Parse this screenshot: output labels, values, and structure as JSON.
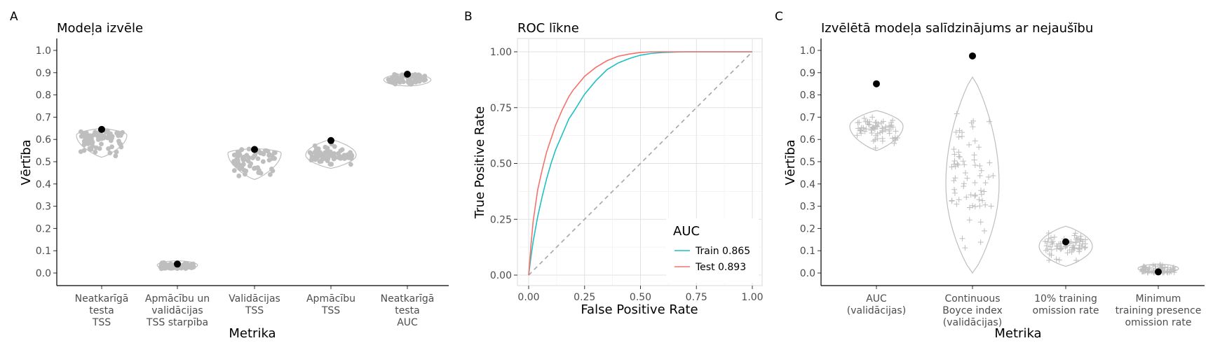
{
  "colors": {
    "dist": "#bebebe",
    "point": "#000000",
    "train": "#1fbfc4",
    "test": "#f2736d",
    "diagonal": "#a6a6a6",
    "grid_major": "#e2e2e2",
    "grid_minor": "#f0f0f0"
  },
  "chart_data": [
    {
      "id": "A",
      "tag": "A",
      "type": "violin-strip",
      "title": "Modeļa izvēle",
      "xlabel": "Metrika",
      "ylabel": "Vērtība",
      "ylim": [
        0,
        1
      ],
      "yticks": [
        "0.0",
        "0.1",
        "0.2",
        "0.3",
        "0.4",
        "0.5",
        "0.6",
        "0.7",
        "0.8",
        "0.9",
        "1.0"
      ],
      "marker": "dot",
      "categories": [
        {
          "label": [
            "Neatkarīgā",
            "testa",
            "TSS"
          ],
          "selected": 0.645,
          "median": 0.62,
          "range": [
            0.52,
            0.65
          ]
        },
        {
          "label": [
            "Apmācību un",
            "validācijas",
            "TSS starpība"
          ],
          "selected": 0.04,
          "median": 0.025,
          "range": [
            0.015,
            0.055
          ]
        },
        {
          "label": [
            "Validācijas",
            "TSS"
          ],
          "selected": 0.555,
          "median": 0.54,
          "range": [
            0.42,
            0.56
          ]
        },
        {
          "label": [
            "Apmācību",
            "TSS"
          ],
          "selected": 0.595,
          "median": 0.53,
          "range": [
            0.47,
            0.6
          ]
        },
        {
          "label": [
            "Neatkarīgā",
            "testa",
            "AUC"
          ],
          "selected": 0.893,
          "median": 0.885,
          "range": [
            0.84,
            0.895
          ]
        }
      ]
    },
    {
      "id": "B",
      "tag": "B",
      "type": "line",
      "title": "ROC līkne",
      "xlabel": "False Positive Rate",
      "ylabel": "True Positive Rate",
      "xlim": [
        0,
        1
      ],
      "ylim": [
        0,
        1
      ],
      "xticks": [
        "0.00",
        "0.25",
        "0.50",
        "0.75",
        "1.00"
      ],
      "yticks": [
        "0.00",
        "0.25",
        "0.50",
        "0.75",
        "1.00"
      ],
      "legend": {
        "title": "AUC",
        "position": "bottom-right"
      },
      "series": [
        {
          "name": "Train 0.865",
          "x": [
            0,
            0.01,
            0.02,
            0.04,
            0.06,
            0.08,
            0.1,
            0.12,
            0.15,
            0.18,
            0.2,
            0.25,
            0.3,
            0.35,
            0.4,
            0.45,
            0.5,
            0.55,
            0.6,
            0.7,
            0.8,
            0.9,
            1.0
          ],
          "y": [
            0,
            0.08,
            0.15,
            0.26,
            0.35,
            0.43,
            0.5,
            0.56,
            0.63,
            0.7,
            0.73,
            0.81,
            0.87,
            0.92,
            0.95,
            0.97,
            0.985,
            0.993,
            0.997,
            1.0,
            1.0,
            1.0,
            1.0
          ]
        },
        {
          "name": "Test 0.893",
          "x": [
            0,
            0.01,
            0.02,
            0.04,
            0.06,
            0.08,
            0.1,
            0.12,
            0.15,
            0.18,
            0.2,
            0.25,
            0.3,
            0.35,
            0.4,
            0.45,
            0.5,
            0.55,
            0.6,
            0.7,
            0.8,
            0.9,
            1.0
          ],
          "y": [
            0,
            0.13,
            0.24,
            0.38,
            0.47,
            0.55,
            0.61,
            0.67,
            0.74,
            0.8,
            0.83,
            0.89,
            0.93,
            0.96,
            0.98,
            0.99,
            0.997,
            1.0,
            1.0,
            1.0,
            1.0,
            1.0,
            1.0
          ]
        }
      ],
      "reference_line": {
        "x": [
          0,
          1
        ],
        "y": [
          0,
          1
        ]
      }
    },
    {
      "id": "C",
      "tag": "C",
      "type": "violin-strip",
      "title": "Izvēlētā modeļa salīdzinājums ar nejaušību",
      "xlabel": "Metrika",
      "ylabel": "Vērtība",
      "ylim": [
        0,
        1
      ],
      "yticks": [
        "0.0",
        "0.1",
        "0.2",
        "0.3",
        "0.4",
        "0.5",
        "0.6",
        "0.7",
        "0.8",
        "0.9",
        "1.0"
      ],
      "marker": "plus",
      "categories": [
        {
          "label": [
            "AUC",
            "(validācijas)"
          ],
          "selected": 0.85,
          "median": 0.66,
          "range": [
            0.55,
            0.73
          ]
        },
        {
          "label": [
            "Continuous",
            "Boyce index",
            "(validācijas)"
          ],
          "selected": 0.975,
          "median": 0.4,
          "range": [
            0.0,
            0.88
          ]
        },
        {
          "label": [
            "10% training",
            "omission rate"
          ],
          "selected": 0.14,
          "median": 0.12,
          "range": [
            0.03,
            0.21
          ]
        },
        {
          "label": [
            "Minimum",
            "training presence",
            "omission rate"
          ],
          "selected": 0.005,
          "median": 0.005,
          "range": [
            0.0,
            0.04
          ]
        }
      ]
    }
  ]
}
